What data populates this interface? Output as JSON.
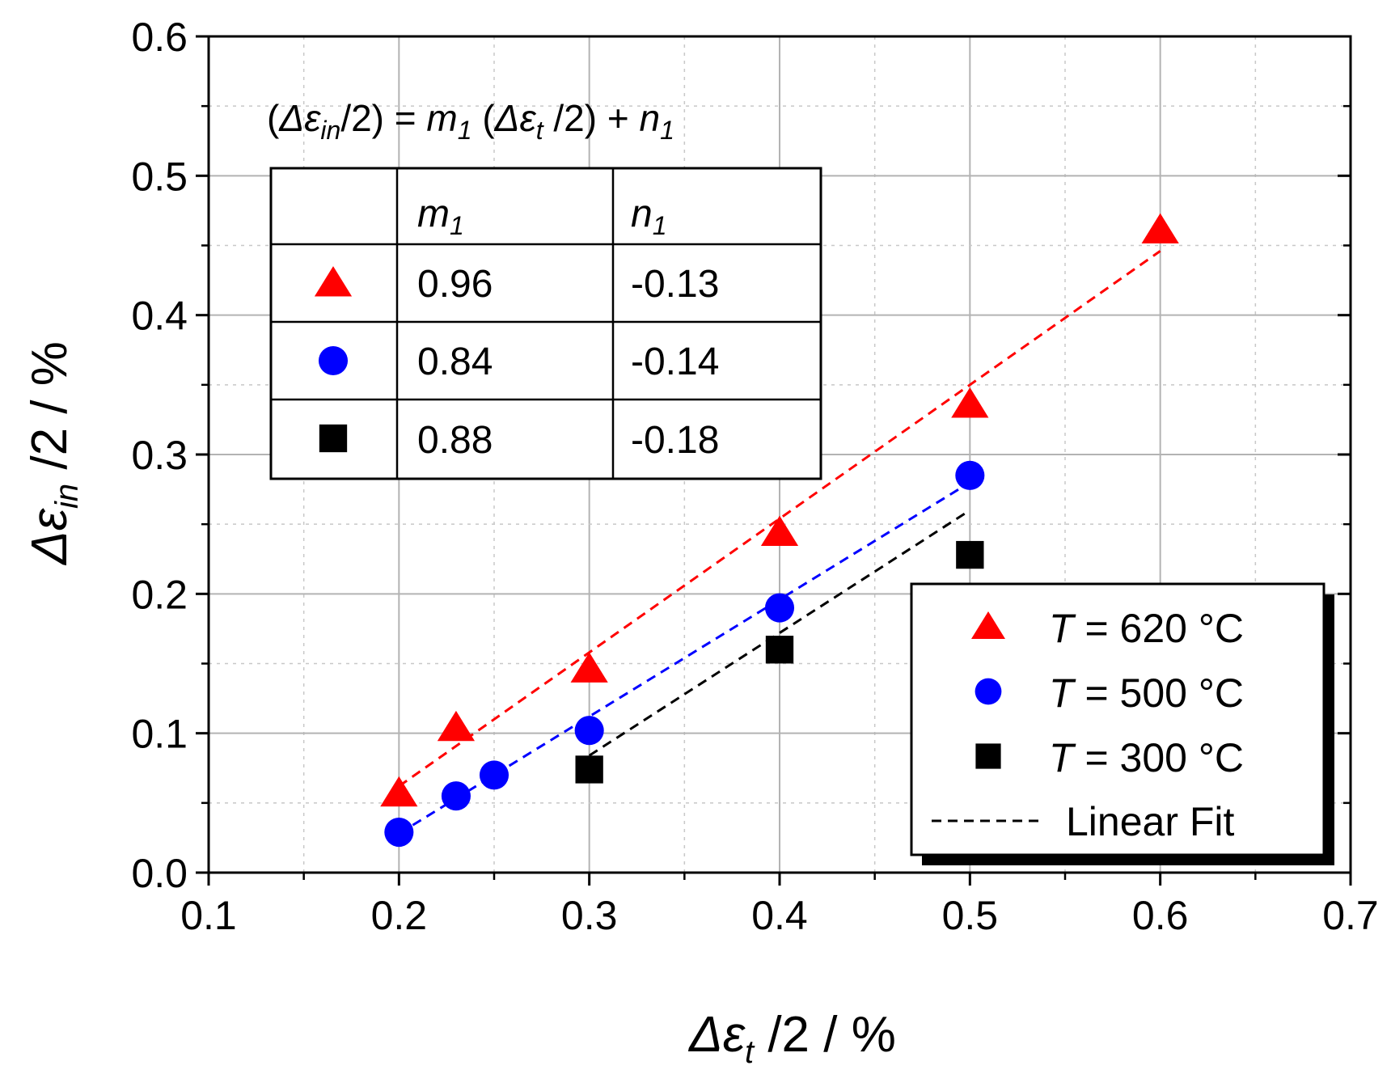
{
  "chart_data": {
    "type": "scatter",
    "xlabel": {
      "symbol": "Δε",
      "sub": "t",
      "rest": " /2 / %"
    },
    "ylabel": {
      "symbol": "Δε",
      "sub": "in",
      "rest": " /2 / %"
    },
    "xlim": [
      0.1,
      0.7
    ],
    "ylim": [
      0.0,
      0.6
    ],
    "xticks": [
      "0.1",
      "0.2",
      "0.3",
      "0.4",
      "0.5",
      "0.6",
      "0.7"
    ],
    "yticks": [
      "0.0",
      "0.1",
      "0.2",
      "0.3",
      "0.4",
      "0.5",
      "0.6"
    ],
    "grid": true,
    "legend_position": "lower-right",
    "series": [
      {
        "name": "T = 620 °C",
        "label_var": "T",
        "label_rest": " = 620 °C",
        "marker": "triangle",
        "color": "#ff0000",
        "x": [
          0.2,
          0.23,
          0.3,
          0.4,
          0.5,
          0.6
        ],
        "y": [
          0.057,
          0.104,
          0.146,
          0.244,
          0.336,
          0.461
        ],
        "fit": {
          "m": 0.96,
          "n": -0.13,
          "x_range": [
            0.2,
            0.6
          ]
        }
      },
      {
        "name": "T = 500 °C",
        "label_var": "T",
        "label_rest": " = 500 °C",
        "marker": "circle",
        "color": "#0000ff",
        "x": [
          0.2,
          0.23,
          0.25,
          0.3,
          0.4,
          0.5
        ],
        "y": [
          0.029,
          0.055,
          0.07,
          0.102,
          0.19,
          0.285
        ],
        "fit": {
          "m": 0.84,
          "n": -0.14,
          "x_range": [
            0.2,
            0.5
          ]
        }
      },
      {
        "name": "T = 300 °C",
        "label_var": "T",
        "label_rest": " = 300 °C",
        "marker": "square",
        "color": "#000000",
        "x": [
          0.3,
          0.4,
          0.5
        ],
        "y": [
          0.074,
          0.16,
          0.228
        ],
        "fit": {
          "m": 0.88,
          "n": -0.18,
          "x_range": [
            0.3,
            0.5
          ]
        }
      }
    ],
    "legend_fit_label": "Linear Fit",
    "equation": {
      "parts": [
        "(",
        "Δε",
        "in",
        "/2) = ",
        "m",
        "1",
        " (",
        "Δε",
        "t",
        " /2) + ",
        "n",
        "1"
      ]
    },
    "table": {
      "headers": [
        {
          "var": "m",
          "sub": "1"
        },
        {
          "var": "n",
          "sub": "1"
        }
      ],
      "rows": [
        {
          "marker": "triangle",
          "color": "#ff0000",
          "m": "0.96",
          "n": "-0.13"
        },
        {
          "marker": "circle",
          "color": "#0000ff",
          "m": "0.84",
          "n": "-0.14"
        },
        {
          "marker": "square",
          "color": "#000000",
          "m": "0.88",
          "n": "-0.18"
        }
      ]
    }
  }
}
